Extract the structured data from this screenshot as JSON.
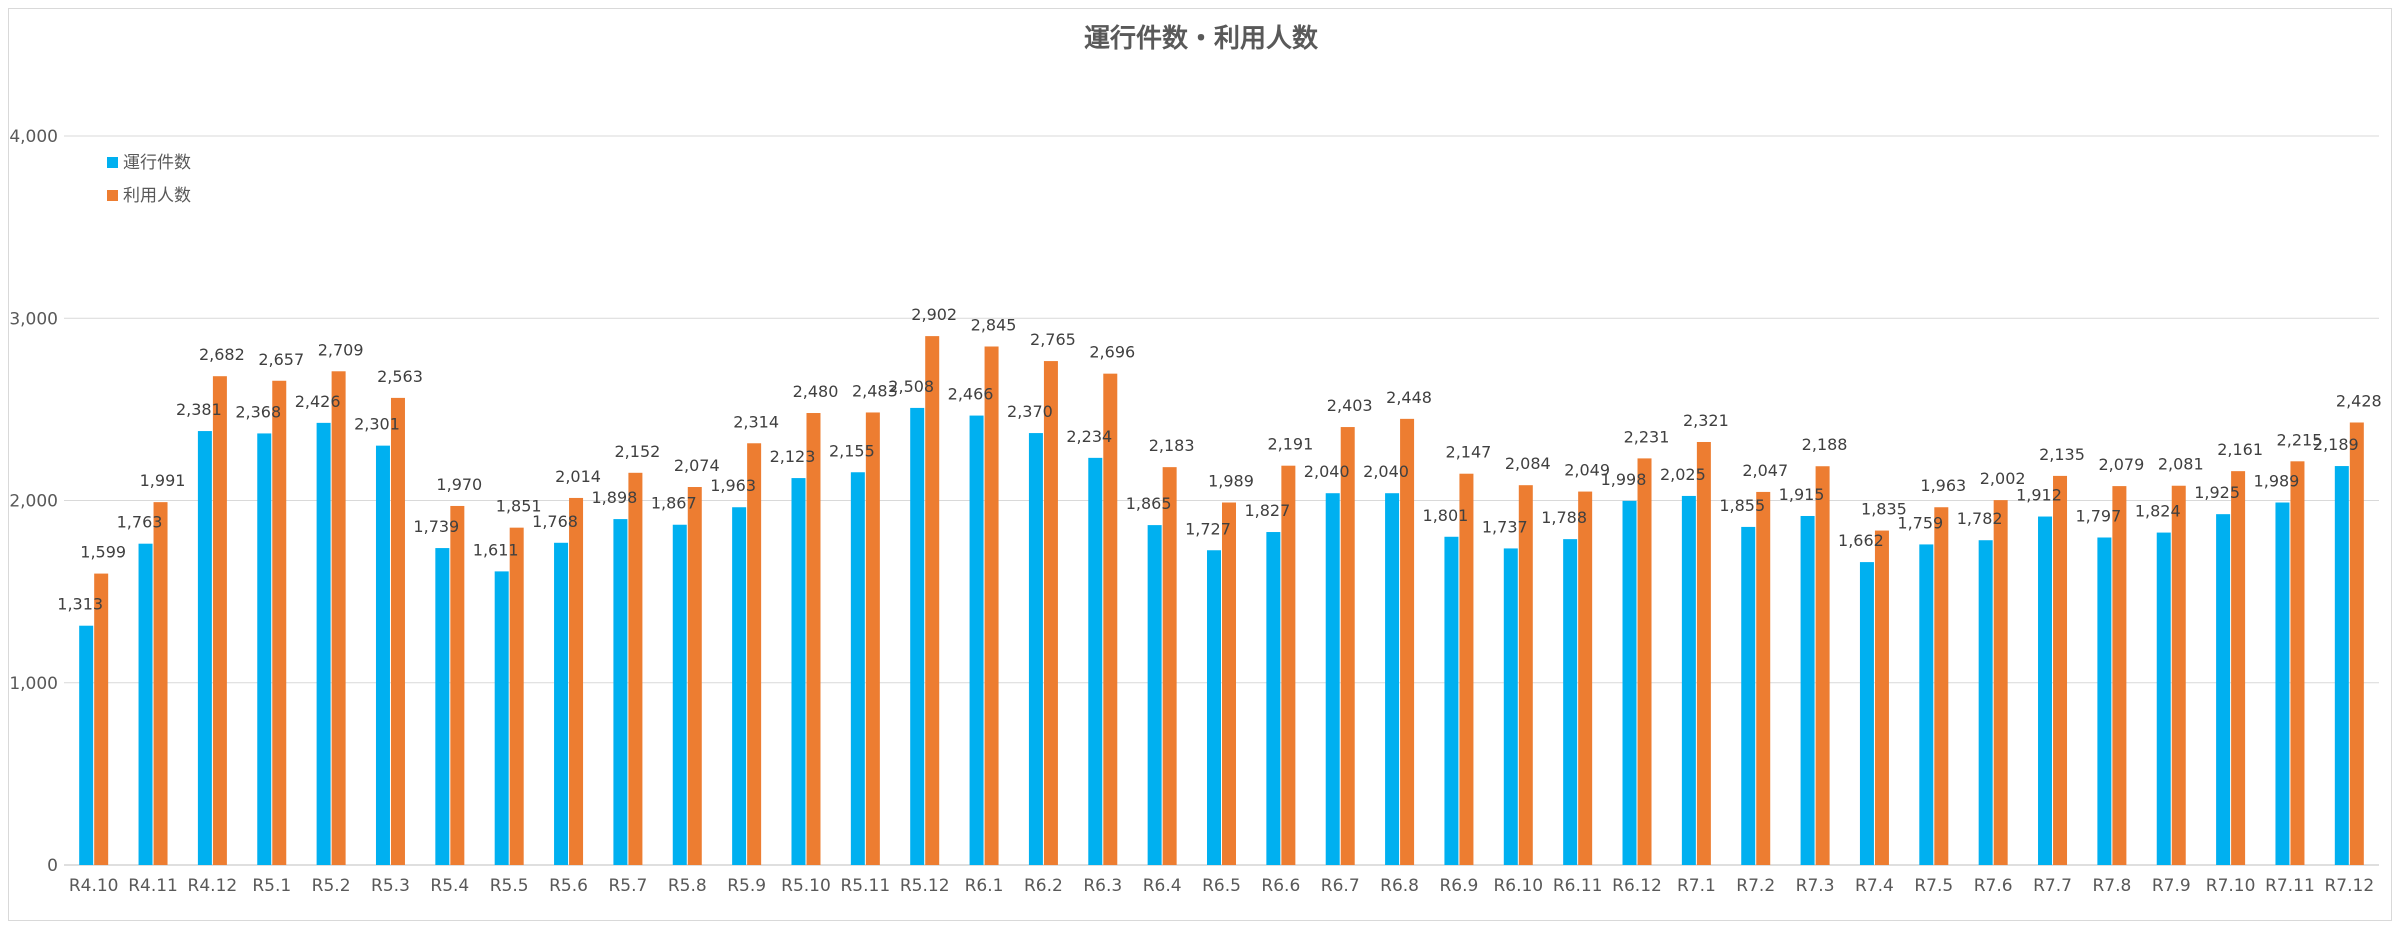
{
  "colors": {
    "series1": "#00B0F0",
    "series2": "#ED7D31",
    "grid": "#d9d9d9",
    "axis": "#bfbfbf"
  },
  "chart_data": {
    "type": "bar",
    "title": "運行件数・利用人数",
    "xlabel": "",
    "ylabel": "",
    "ylim": [
      0,
      4000
    ],
    "yticks": [
      0,
      1000,
      2000,
      3000,
      4000
    ],
    "ytick_labels": [
      "0",
      "1,000",
      "2,000",
      "3,000",
      "4,000"
    ],
    "grid": true,
    "legend_position": "top-left",
    "categories": [
      "R4.10",
      "R4.11",
      "R4.12",
      "R5.1",
      "R5.2",
      "R5.3",
      "R5.4",
      "R5.5",
      "R5.6",
      "R5.7",
      "R5.8",
      "R5.9",
      "R5.10",
      "R5.11",
      "R5.12",
      "R6.1",
      "R6.2",
      "R6.3",
      "R6.4",
      "R6.5",
      "R6.6",
      "R6.7",
      "R6.8",
      "R6.9",
      "R6.10",
      "R6.11",
      "R6.12",
      "R7.1",
      "R7.2",
      "R7.3",
      "R7.4",
      "R7.5",
      "R7.6",
      "R7.7",
      "R7.8",
      "R7.9",
      "R7.10",
      "R7.11",
      "R7.12"
    ],
    "series": [
      {
        "name": "運行件数",
        "values": [
          1313,
          1763,
          2381,
          2368,
          2426,
          2301,
          1739,
          1611,
          1768,
          1898,
          1867,
          1963,
          2123,
          2155,
          2508,
          2466,
          2370,
          2234,
          1865,
          1727,
          1827,
          2040,
          2040,
          1801,
          1737,
          1788,
          1998,
          2025,
          1855,
          1915,
          1662,
          1759,
          1782,
          1912,
          1797,
          1824,
          1925,
          1989,
          2189
        ],
        "labels": [
          "1,313",
          "1,763",
          "2,381",
          "2,368",
          "2,426",
          "2,301",
          "1,739",
          "1,611",
          "1,768",
          "1,898",
          "1,867",
          "1,963",
          "2,123",
          "2,155",
          "2,508",
          "2,466",
          "2,370",
          "2,234",
          "1,865",
          "1,727",
          "1,827",
          "2,040",
          "2,040",
          "1,801",
          "1,737",
          "1,788",
          "1,998",
          "2,025",
          "1,855",
          "1,915",
          "1,662",
          "1,759",
          "1,782",
          "1,912",
          "1,797",
          "1,824",
          "1,925",
          "1,989",
          "2,189"
        ]
      },
      {
        "name": "利用人数",
        "values": [
          1599,
          1991,
          2682,
          2657,
          2709,
          2563,
          1970,
          1851,
          2014,
          2152,
          2074,
          2314,
          2480,
          2483,
          2902,
          2845,
          2765,
          2696,
          2183,
          1989,
          2191,
          2403,
          2448,
          2147,
          2084,
          2049,
          2231,
          2321,
          2047,
          2188,
          1835,
          1963,
          2002,
          2135,
          2079,
          2081,
          2161,
          2215,
          2428
        ],
        "labels": [
          "1,599",
          "1,991",
          "2,682",
          "2,657",
          "2,709",
          "2,563",
          "1,970",
          "1,851",
          "2,014",
          "2,152",
          "2,074",
          "2,314",
          "2,480",
          "2,483",
          "2,902",
          "2,845",
          "2,765",
          "2,696",
          "2,183",
          "1,989",
          "2,191",
          "2,403",
          "2,448",
          "2,147",
          "2,084",
          "2,049",
          "2,231",
          "2,321",
          "2,047",
          "2,188",
          "1,835",
          "1,963",
          "2,002",
          "2,135",
          "2,079",
          "2,081",
          "2,161",
          "2,215",
          "2,428"
        ]
      }
    ]
  }
}
